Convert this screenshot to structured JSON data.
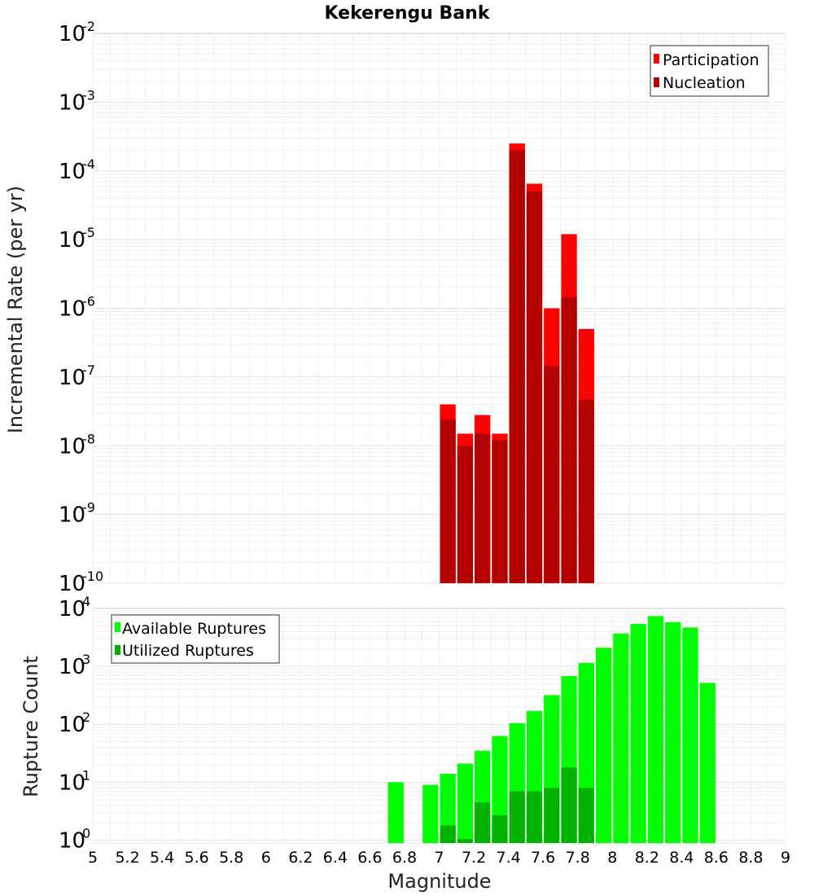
{
  "chart_data": [
    {
      "type": "bar",
      "title": "Kekerengu Bank",
      "xlabel": "",
      "ylabel": "Incremental Rate (per yr)",
      "yscale": "log",
      "ylim_exponents": [
        -10,
        -2
      ],
      "xlim": [
        5,
        9
      ],
      "bin_width": 0.1,
      "grid": true,
      "legend_position": "top-right",
      "y_ticks": [
        {
          "base": "10",
          "exp": "-10"
        },
        {
          "base": "10",
          "exp": "-9"
        },
        {
          "base": "10",
          "exp": "-8"
        },
        {
          "base": "10",
          "exp": "-7"
        },
        {
          "base": "10",
          "exp": "-6"
        },
        {
          "base": "10",
          "exp": "-5"
        },
        {
          "base": "10",
          "exp": "-4"
        },
        {
          "base": "10",
          "exp": "-3"
        },
        {
          "base": "10",
          "exp": "-2"
        }
      ],
      "x": [
        7.05,
        7.15,
        7.25,
        7.35,
        7.45,
        7.55,
        7.65,
        7.75,
        7.85
      ],
      "series": [
        {
          "name": "Participation",
          "color": "#ff0000",
          "values": [
            4e-08,
            1.5e-08,
            2.8e-08,
            1.5e-08,
            0.00025,
            6.5e-05,
            1e-06,
            1.2e-05,
            5e-07
          ]
        },
        {
          "name": "Nucleation",
          "color": "#b30000",
          "values": [
            2.4e-08,
            1e-08,
            1.5e-08,
            1.2e-08,
            0.0002,
            5e-05,
            1.45e-07,
            1.45e-06,
            4.7e-08
          ]
        }
      ]
    },
    {
      "type": "bar",
      "title": "",
      "xlabel": "Magnitude",
      "ylabel": "Rupture Count",
      "yscale": "log",
      "ylim_exponents": [
        -0.05,
        4
      ],
      "xlim": [
        5,
        9
      ],
      "bin_width": 0.1,
      "grid": true,
      "legend_position": "top-left",
      "x_ticks": [
        "5",
        "5.2",
        "5.4",
        "5.6",
        "5.8",
        "6",
        "6.2",
        "6.4",
        "6.6",
        "6.8",
        "7",
        "7.2",
        "7.4",
        "7.6",
        "7.8",
        "8",
        "8.2",
        "8.4",
        "8.6",
        "8.8",
        "9"
      ],
      "y_ticks": [
        {
          "base": "10",
          "exp": "0"
        },
        {
          "base": "10",
          "exp": "1"
        },
        {
          "base": "10",
          "exp": "2"
        },
        {
          "base": "10",
          "exp": "3"
        },
        {
          "base": "10",
          "exp": "4"
        }
      ],
      "series": [
        {
          "name": "Available Ruptures",
          "color": "#00ff00",
          "x": [
            6.75,
            6.95,
            7.05,
            7.15,
            7.25,
            7.35,
            7.45,
            7.55,
            7.65,
            7.75,
            7.85,
            7.95,
            8.05,
            8.15,
            8.25,
            8.35,
            8.45,
            8.55
          ],
          "values": [
            10,
            9,
            14,
            21,
            35,
            63,
            105,
            170,
            320,
            680,
            1150,
            2100,
            3700,
            5400,
            7400,
            5800,
            4700,
            520
          ]
        },
        {
          "name": "Utilized Ruptures",
          "color": "#00b300",
          "x": [
            7.05,
            7.15,
            7.25,
            7.35,
            7.45,
            7.55,
            7.65,
            7.75,
            7.85
          ],
          "values": [
            1.8,
            1.05,
            4.5,
            2.7,
            7,
            7,
            8,
            18,
            8
          ]
        }
      ]
    }
  ]
}
